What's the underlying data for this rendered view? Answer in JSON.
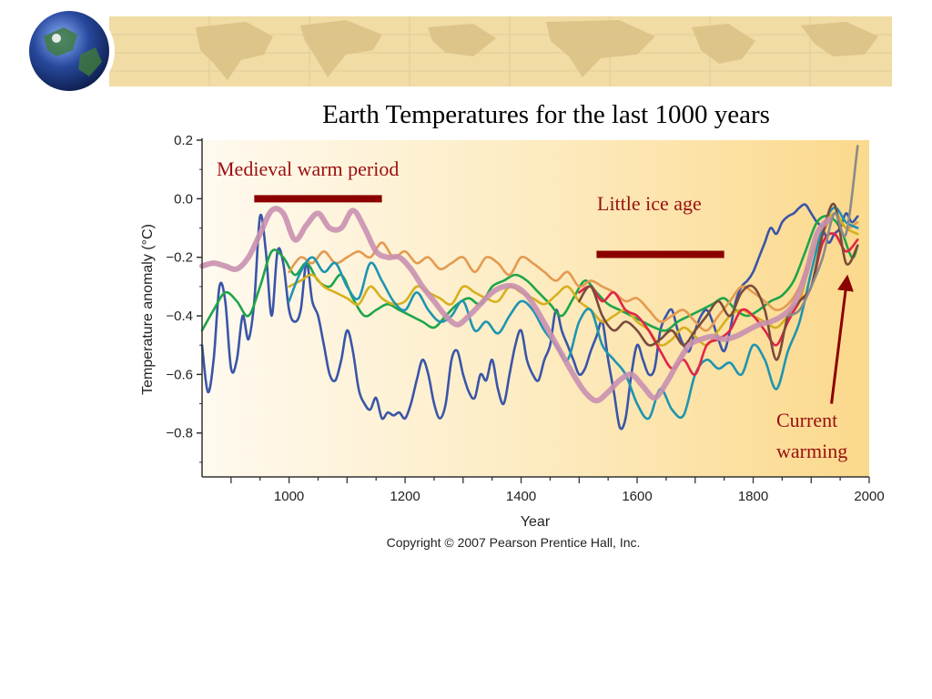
{
  "slide": {
    "title": "Earth Temperatures for the last 1000 years",
    "colors": {
      "banner": "#f0dca4",
      "banner_land": "#ddc58a",
      "globe_ocean": "#1f3f8f",
      "globe_land": "#3f7a3a"
    },
    "icons": [
      "globe-icon",
      "world-map-graphic"
    ]
  },
  "chart_data": {
    "type": "line",
    "xlabel": "Year",
    "ylabel": "Temperature anomaly (°C)",
    "xlim": [
      850,
      2000
    ],
    "ylim": [
      -0.95,
      0.2
    ],
    "xticks": [
      1000,
      1200,
      1400,
      1600,
      1800,
      2000
    ],
    "yticks": [
      0.2,
      0.0,
      -0.2,
      -0.4,
      -0.6,
      -0.8
    ],
    "ytick_labels": [
      "0.2",
      "0.0",
      "−0.2",
      "−0.4",
      "−0.6",
      "−0.8"
    ],
    "grid": false,
    "background_gradient": [
      "#fffaf0",
      "#fbd98c"
    ],
    "copyright": "Copyright © 2007 Pearson Prentice Hall, Inc.",
    "annotations": [
      {
        "text": "Medieval warm period",
        "x_range": [
          940,
          1160
        ],
        "y": -0.0,
        "color": "#8b0000"
      },
      {
        "text": "Little ice age",
        "x_range": [
          1530,
          1750
        ],
        "y": -0.19,
        "color": "#8b0000"
      },
      {
        "text": "Current",
        "color": "#8b0000"
      },
      {
        "text": "warming",
        "color": "#8b0000",
        "arrow_from": [
          1935,
          -0.7
        ],
        "arrow_to": [
          1962,
          -0.27
        ]
      }
    ],
    "series": [
      {
        "color": "#3a55a8",
        "x": [
          850,
          860,
          870,
          880,
          890,
          900,
          910,
          920,
          930,
          940,
          950,
          960,
          970,
          980,
          990,
          1000,
          1010,
          1020,
          1030,
          1040,
          1050,
          1060,
          1070,
          1080,
          1090,
          1100,
          1110,
          1120,
          1130,
          1140,
          1150,
          1160,
          1170,
          1180,
          1190,
          1200,
          1210,
          1220,
          1230,
          1240,
          1250,
          1260,
          1270,
          1280,
          1290,
          1300,
          1310,
          1320,
          1330,
          1340,
          1350,
          1360,
          1370,
          1380,
          1390,
          1400,
          1410,
          1420,
          1430,
          1440,
          1450,
          1460,
          1470,
          1480,
          1490,
          1500,
          1510,
          1520,
          1530,
          1540,
          1550,
          1560,
          1570,
          1580,
          1590,
          1600,
          1610,
          1620,
          1630,
          1640,
          1650,
          1660,
          1670,
          1680,
          1690,
          1700,
          1710,
          1720,
          1730,
          1740,
          1750,
          1760,
          1770,
          1780,
          1790,
          1800,
          1810,
          1820,
          1830,
          1840,
          1850,
          1860,
          1870,
          1880,
          1890,
          1900,
          1910,
          1920,
          1930,
          1940,
          1950,
          1960,
          1970,
          1980
        ],
        "y": [
          -0.5,
          -0.66,
          -0.55,
          -0.3,
          -0.35,
          -0.58,
          -0.55,
          -0.4,
          -0.48,
          -0.35,
          -0.06,
          -0.18,
          -0.4,
          -0.18,
          -0.22,
          -0.38,
          -0.42,
          -0.38,
          -0.22,
          -0.35,
          -0.4,
          -0.5,
          -0.6,
          -0.62,
          -0.55,
          -0.45,
          -0.52,
          -0.65,
          -0.7,
          -0.72,
          -0.68,
          -0.75,
          -0.73,
          -0.74,
          -0.73,
          -0.75,
          -0.7,
          -0.62,
          -0.55,
          -0.6,
          -0.7,
          -0.75,
          -0.7,
          -0.55,
          -0.52,
          -0.6,
          -0.66,
          -0.68,
          -0.6,
          -0.62,
          -0.55,
          -0.65,
          -0.7,
          -0.6,
          -0.5,
          -0.45,
          -0.55,
          -0.6,
          -0.62,
          -0.55,
          -0.5,
          -0.38,
          -0.45,
          -0.5,
          -0.55,
          -0.6,
          -0.58,
          -0.52,
          -0.47,
          -0.42,
          -0.55,
          -0.66,
          -0.78,
          -0.75,
          -0.6,
          -0.5,
          -0.55,
          -0.6,
          -0.58,
          -0.45,
          -0.4,
          -0.38,
          -0.45,
          -0.5,
          -0.52,
          -0.45,
          -0.4,
          -0.38,
          -0.42,
          -0.48,
          -0.52,
          -0.45,
          -0.35,
          -0.3,
          -0.28,
          -0.25,
          -0.2,
          -0.15,
          -0.1,
          -0.12,
          -0.08,
          -0.06,
          -0.05,
          -0.03,
          -0.02,
          -0.05,
          -0.08,
          -0.1,
          -0.15,
          -0.12,
          -0.1,
          -0.05,
          -0.08,
          -0.06
        ]
      },
      {
        "color": "#1ea54a",
        "x": [
          850,
          870,
          890,
          910,
          930,
          950,
          970,
          990,
          1010,
          1030,
          1050,
          1070,
          1090,
          1110,
          1130,
          1150,
          1170,
          1190,
          1210,
          1230,
          1250,
          1270,
          1290,
          1310,
          1330,
          1350,
          1370,
          1390,
          1410,
          1430,
          1450,
          1470,
          1490,
          1510,
          1530,
          1550,
          1570,
          1590,
          1610,
          1630,
          1650,
          1670,
          1690,
          1710,
          1730,
          1750,
          1770,
          1790,
          1810,
          1830,
          1850,
          1870,
          1890,
          1910,
          1930,
          1950,
          1970,
          1980
        ],
        "y": [
          -0.45,
          -0.38,
          -0.32,
          -0.35,
          -0.4,
          -0.3,
          -0.18,
          -0.2,
          -0.26,
          -0.22,
          -0.28,
          -0.3,
          -0.26,
          -0.34,
          -0.4,
          -0.38,
          -0.36,
          -0.38,
          -0.4,
          -0.42,
          -0.44,
          -0.4,
          -0.36,
          -0.34,
          -0.36,
          -0.3,
          -0.28,
          -0.26,
          -0.28,
          -0.32,
          -0.36,
          -0.4,
          -0.34,
          -0.28,
          -0.32,
          -0.36,
          -0.38,
          -0.4,
          -0.42,
          -0.44,
          -0.45,
          -0.42,
          -0.4,
          -0.38,
          -0.36,
          -0.34,
          -0.38,
          -0.4,
          -0.38,
          -0.35,
          -0.33,
          -0.28,
          -0.18,
          -0.08,
          -0.06,
          -0.1,
          -0.2,
          -0.16
        ]
      },
      {
        "color": "#e49a50",
        "x": [
          1000,
          1020,
          1040,
          1060,
          1080,
          1100,
          1120,
          1140,
          1160,
          1180,
          1200,
          1220,
          1240,
          1260,
          1280,
          1300,
          1320,
          1340,
          1360,
          1380,
          1400,
          1420,
          1440,
          1460,
          1480,
          1500,
          1520,
          1540,
          1560,
          1580,
          1600,
          1620,
          1640,
          1660,
          1680,
          1700,
          1720,
          1740,
          1760,
          1780,
          1800,
          1820,
          1840,
          1860,
          1880,
          1900,
          1920,
          1940,
          1960,
          1980
        ],
        "y": [
          -0.25,
          -0.2,
          -0.22,
          -0.18,
          -0.22,
          -0.2,
          -0.18,
          -0.2,
          -0.15,
          -0.2,
          -0.18,
          -0.22,
          -0.2,
          -0.24,
          -0.22,
          -0.2,
          -0.25,
          -0.2,
          -0.22,
          -0.26,
          -0.2,
          -0.22,
          -0.25,
          -0.28,
          -0.25,
          -0.3,
          -0.28,
          -0.3,
          -0.32,
          -0.35,
          -0.34,
          -0.38,
          -0.42,
          -0.4,
          -0.38,
          -0.42,
          -0.45,
          -0.4,
          -0.35,
          -0.3,
          -0.32,
          -0.35,
          -0.38,
          -0.36,
          -0.3,
          -0.2,
          -0.12,
          -0.05,
          -0.1,
          -0.08
        ]
      },
      {
        "color": "#d6b01e",
        "x": [
          1000,
          1020,
          1040,
          1060,
          1080,
          1100,
          1120,
          1140,
          1160,
          1180,
          1200,
          1220,
          1240,
          1260,
          1280,
          1300,
          1320,
          1340,
          1360,
          1380,
          1400,
          1420,
          1440,
          1460,
          1480,
          1500,
          1520,
          1540,
          1560,
          1580,
          1600,
          1620,
          1640,
          1660,
          1680,
          1700,
          1720,
          1740,
          1760,
          1780,
          1800,
          1820,
          1840,
          1860,
          1880,
          1900,
          1920,
          1940,
          1960,
          1980
        ],
        "y": [
          -0.3,
          -0.28,
          -0.26,
          -0.3,
          -0.32,
          -0.34,
          -0.36,
          -0.3,
          -0.34,
          -0.36,
          -0.35,
          -0.3,
          -0.32,
          -0.34,
          -0.36,
          -0.3,
          -0.32,
          -0.34,
          -0.35,
          -0.3,
          -0.32,
          -0.34,
          -0.36,
          -0.33,
          -0.3,
          -0.35,
          -0.38,
          -0.42,
          -0.4,
          -0.38,
          -0.42,
          -0.45,
          -0.5,
          -0.48,
          -0.44,
          -0.47,
          -0.5,
          -0.45,
          -0.4,
          -0.38,
          -0.4,
          -0.42,
          -0.44,
          -0.4,
          -0.35,
          -0.2,
          -0.1,
          -0.05,
          -0.1,
          -0.12
        ]
      },
      {
        "color": "#1f94b0",
        "x": [
          1000,
          1020,
          1040,
          1060,
          1080,
          1100,
          1120,
          1140,
          1160,
          1180,
          1200,
          1220,
          1240,
          1260,
          1280,
          1300,
          1320,
          1340,
          1360,
          1380,
          1400,
          1420,
          1440,
          1460,
          1480,
          1500,
          1520,
          1540,
          1560,
          1580,
          1600,
          1620,
          1640,
          1660,
          1680,
          1700,
          1720,
          1740,
          1760,
          1780,
          1800,
          1820,
          1840,
          1860,
          1880,
          1900,
          1920,
          1940,
          1960,
          1980
        ],
        "y": [
          -0.35,
          -0.25,
          -0.2,
          -0.25,
          -0.22,
          -0.3,
          -0.34,
          -0.22,
          -0.28,
          -0.35,
          -0.38,
          -0.32,
          -0.38,
          -0.42,
          -0.4,
          -0.35,
          -0.45,
          -0.42,
          -0.46,
          -0.4,
          -0.35,
          -0.38,
          -0.45,
          -0.5,
          -0.55,
          -0.42,
          -0.38,
          -0.5,
          -0.55,
          -0.6,
          -0.7,
          -0.75,
          -0.65,
          -0.72,
          -0.74,
          -0.6,
          -0.55,
          -0.58,
          -0.56,
          -0.6,
          -0.5,
          -0.55,
          -0.65,
          -0.52,
          -0.42,
          -0.25,
          -0.1,
          -0.03,
          -0.08,
          -0.1
        ]
      },
      {
        "color": "#e0254a",
        "x": [
          1500,
          1520,
          1540,
          1560,
          1580,
          1600,
          1620,
          1640,
          1660,
          1680,
          1700,
          1720,
          1740,
          1760,
          1780,
          1800,
          1820,
          1840,
          1860,
          1880,
          1900,
          1920,
          1940,
          1960,
          1980
        ],
        "y": [
          -0.32,
          -0.3,
          -0.35,
          -0.32,
          -0.38,
          -0.4,
          -0.45,
          -0.52,
          -0.58,
          -0.55,
          -0.6,
          -0.5,
          -0.48,
          -0.45,
          -0.38,
          -0.4,
          -0.45,
          -0.5,
          -0.42,
          -0.35,
          -0.3,
          -0.15,
          -0.12,
          -0.18,
          -0.14
        ]
      },
      {
        "color": "#7a4a3a",
        "x": [
          1500,
          1520,
          1540,
          1560,
          1580,
          1600,
          1620,
          1640,
          1660,
          1680,
          1700,
          1720,
          1740,
          1760,
          1780,
          1800,
          1820,
          1840,
          1860,
          1880,
          1900,
          1920,
          1940,
          1960,
          1980
        ],
        "y": [
          -0.35,
          -0.3,
          -0.4,
          -0.45,
          -0.42,
          -0.45,
          -0.5,
          -0.48,
          -0.45,
          -0.5,
          -0.45,
          -0.4,
          -0.35,
          -0.4,
          -0.32,
          -0.3,
          -0.38,
          -0.55,
          -0.4,
          -0.35,
          -0.3,
          -0.12,
          -0.02,
          -0.22,
          -0.16
        ]
      },
      {
        "color": "#8a8a8a",
        "x": [
          1860,
          1880,
          1900,
          1920,
          1940,
          1960,
          1980
        ],
        "y": [
          -0.4,
          -0.38,
          -0.3,
          -0.2,
          -0.05,
          -0.12,
          0.18
        ]
      },
      {
        "color": "#c990b0",
        "x": [
          850,
          870,
          890,
          910,
          930,
          950,
          970,
          990,
          1010,
          1030,
          1050,
          1070,
          1090,
          1110,
          1130,
          1150,
          1170,
          1190,
          1210,
          1230,
          1250,
          1270,
          1290,
          1310,
          1330,
          1350,
          1370,
          1390,
          1410,
          1430,
          1450,
          1470,
          1490,
          1510,
          1530,
          1550,
          1570,
          1590,
          1610,
          1630,
          1650,
          1670,
          1690,
          1710,
          1730,
          1750,
          1770,
          1790,
          1810,
          1830,
          1850,
          1870,
          1890,
          1910,
          1930
        ],
        "y": [
          -0.23,
          -0.22,
          -0.23,
          -0.24,
          -0.2,
          -0.12,
          -0.04,
          -0.05,
          -0.14,
          -0.09,
          -0.05,
          -0.1,
          -0.1,
          -0.04,
          -0.1,
          -0.18,
          -0.2,
          -0.2,
          -0.24,
          -0.3,
          -0.35,
          -0.4,
          -0.43,
          -0.4,
          -0.36,
          -0.32,
          -0.3,
          -0.3,
          -0.33,
          -0.39,
          -0.46,
          -0.53,
          -0.6,
          -0.66,
          -0.69,
          -0.66,
          -0.62,
          -0.6,
          -0.64,
          -0.68,
          -0.63,
          -0.56,
          -0.5,
          -0.48,
          -0.47,
          -0.48,
          -0.47,
          -0.45,
          -0.43,
          -0.42,
          -0.4,
          -0.36,
          -0.26,
          -0.12,
          -0.07
        ]
      }
    ]
  }
}
